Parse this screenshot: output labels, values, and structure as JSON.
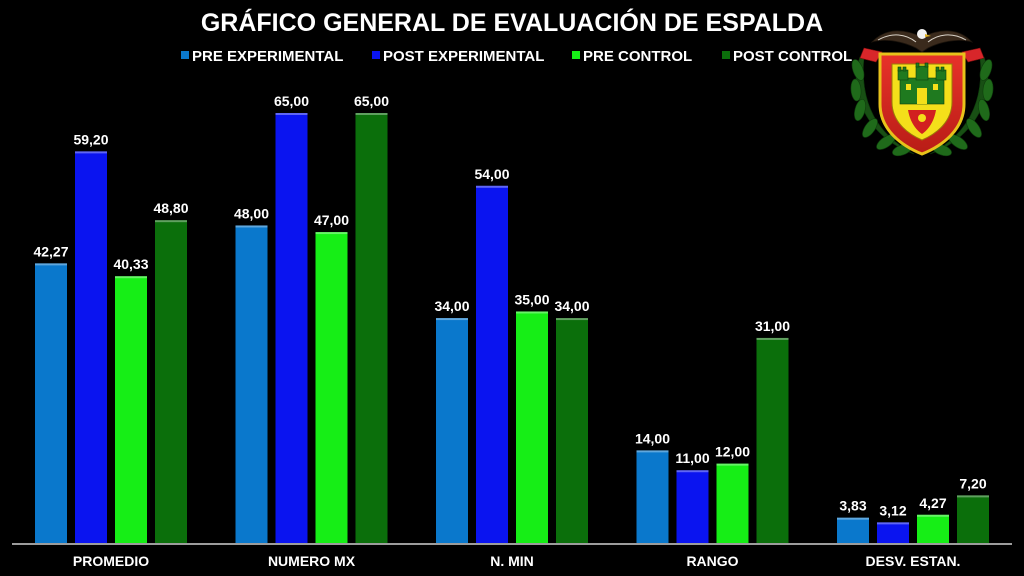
{
  "chart_data": {
    "type": "bar",
    "title": "GRÁFICO GENERAL DE EVALUACIÓN DE ESPALDA",
    "xlabel": "",
    "ylabel": "",
    "ylim": [
      0,
      70
    ],
    "grid": false,
    "legend_position": "top",
    "categories": [
      "PROMEDIO",
      "NUMERO MX",
      "N. MIN",
      "RANGO",
      "DESV. ESTAN."
    ],
    "series": [
      {
        "name": "PRE EXPERIMENTAL",
        "color": "#0a78cc",
        "values": [
          42.27,
          48.0,
          34.0,
          14.0,
          3.83
        ],
        "labels": [
          "42,27",
          "48,00",
          "34,00",
          "14,00",
          "3,83"
        ]
      },
      {
        "name": "POST EXPERIMENTAL",
        "color": "#0a14f0",
        "values": [
          59.2,
          65.0,
          54.0,
          11.0,
          3.12
        ],
        "labels": [
          "59,20",
          "65,00",
          "54,00",
          "11,00",
          "3,12"
        ]
      },
      {
        "name": "PRE CONTROL",
        "color": "#16ee16",
        "values": [
          40.33,
          47.0,
          35.0,
          12.0,
          4.27
        ],
        "labels": [
          "40,33",
          "47,00",
          "35,00",
          "12,00",
          "4,27"
        ]
      },
      {
        "name": "POST CONTROL",
        "color": "#0b6f0b",
        "values": [
          48.8,
          65.0,
          34.0,
          31.0,
          7.2
        ],
        "labels": [
          "48,80",
          "65,00",
          "34,00",
          "31,00",
          "7,20"
        ]
      }
    ]
  },
  "logo": {
    "icon": "military-crest-icon"
  }
}
